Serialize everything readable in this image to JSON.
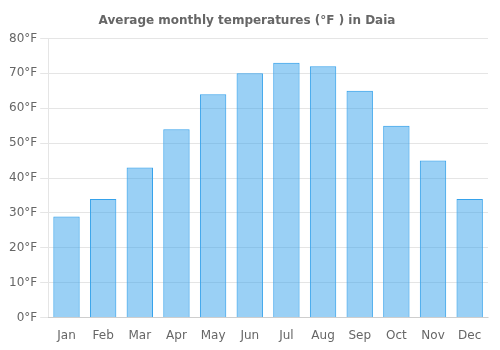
{
  "chart_data": {
    "type": "bar",
    "title": "Average monthly temperatures (°F ) in Daia",
    "categories": [
      "Jan",
      "Feb",
      "Mar",
      "Apr",
      "May",
      "Jun",
      "Jul",
      "Aug",
      "Sep",
      "Oct",
      "Nov",
      "Dec"
    ],
    "values": [
      29,
      34,
      43,
      54,
      64,
      70,
      73,
      72,
      65,
      55,
      45,
      34
    ],
    "ylim": [
      0,
      80
    ],
    "yticks": [
      {
        "value": 0,
        "label": "0°F"
      },
      {
        "value": 10,
        "label": "10°F"
      },
      {
        "value": 20,
        "label": "20°F"
      },
      {
        "value": 30,
        "label": "30°F"
      },
      {
        "value": 40,
        "label": "40°F"
      },
      {
        "value": 50,
        "label": "50°F"
      },
      {
        "value": 60,
        "label": "60°F"
      },
      {
        "value": 70,
        "label": "70°F"
      },
      {
        "value": 80,
        "label": "80°F"
      }
    ],
    "grid": true
  }
}
